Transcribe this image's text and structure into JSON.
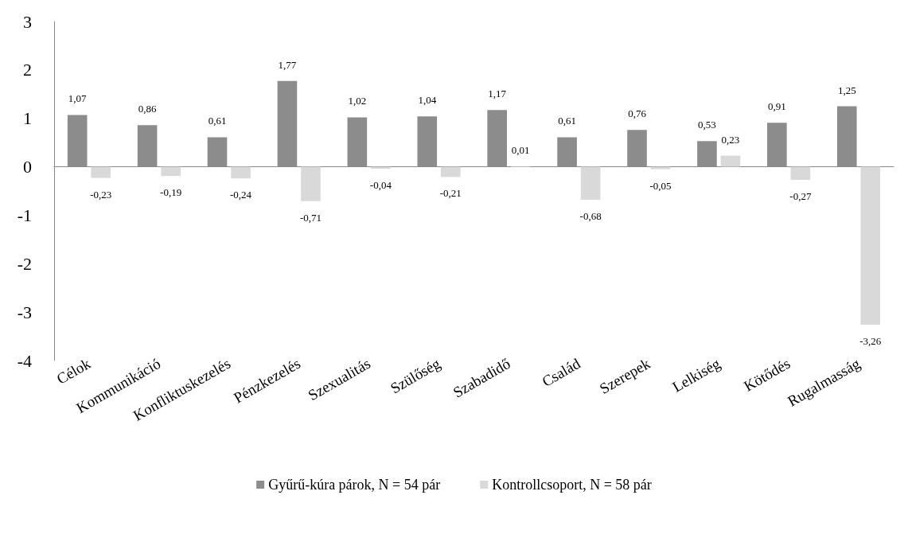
{
  "chart_data": {
    "type": "bar",
    "categories": [
      "Célok",
      "Kommunikáció",
      "Konfliktuskezelés",
      "Pénzkezelés",
      "Szexualitás",
      "Szülőség",
      "Szabadidő",
      "Család",
      "Szerepek",
      "Lelkiség",
      "Kötődés",
      "Rugalmasság"
    ],
    "series": [
      {
        "name": "Gyűrű-kúra párok, N = 54 pár",
        "color": "#8c8c8c",
        "values": [
          1.07,
          0.86,
          0.61,
          1.77,
          1.02,
          1.04,
          1.17,
          0.61,
          0.76,
          0.53,
          0.91,
          1.25
        ],
        "value_labels": [
          "1,07",
          "0,86",
          "0,61",
          "1,77",
          "1,02",
          "1,04",
          "1,17",
          "0,61",
          "0,76",
          "0,53",
          "0,91",
          "1,25"
        ]
      },
      {
        "name": "Kontrollcsoport, N = 58 pár",
        "color": "#d9d9d9",
        "values": [
          -0.23,
          -0.19,
          -0.24,
          -0.71,
          -0.04,
          -0.21,
          0.01,
          -0.68,
          -0.05,
          0.23,
          -0.27,
          -3.26
        ],
        "value_labels": [
          "-0,23",
          "-0,19",
          "-0,24",
          "-0,71",
          "-0,04",
          "-0,21",
          "0,01",
          "-0,68",
          "-0,05",
          "0,23",
          "-0,27",
          "-3,26"
        ]
      }
    ],
    "ylim": [
      -4,
      3
    ],
    "yticks": [
      -4,
      -3,
      -2,
      -1,
      0,
      1,
      2,
      3
    ],
    "legend": "bottom"
  }
}
